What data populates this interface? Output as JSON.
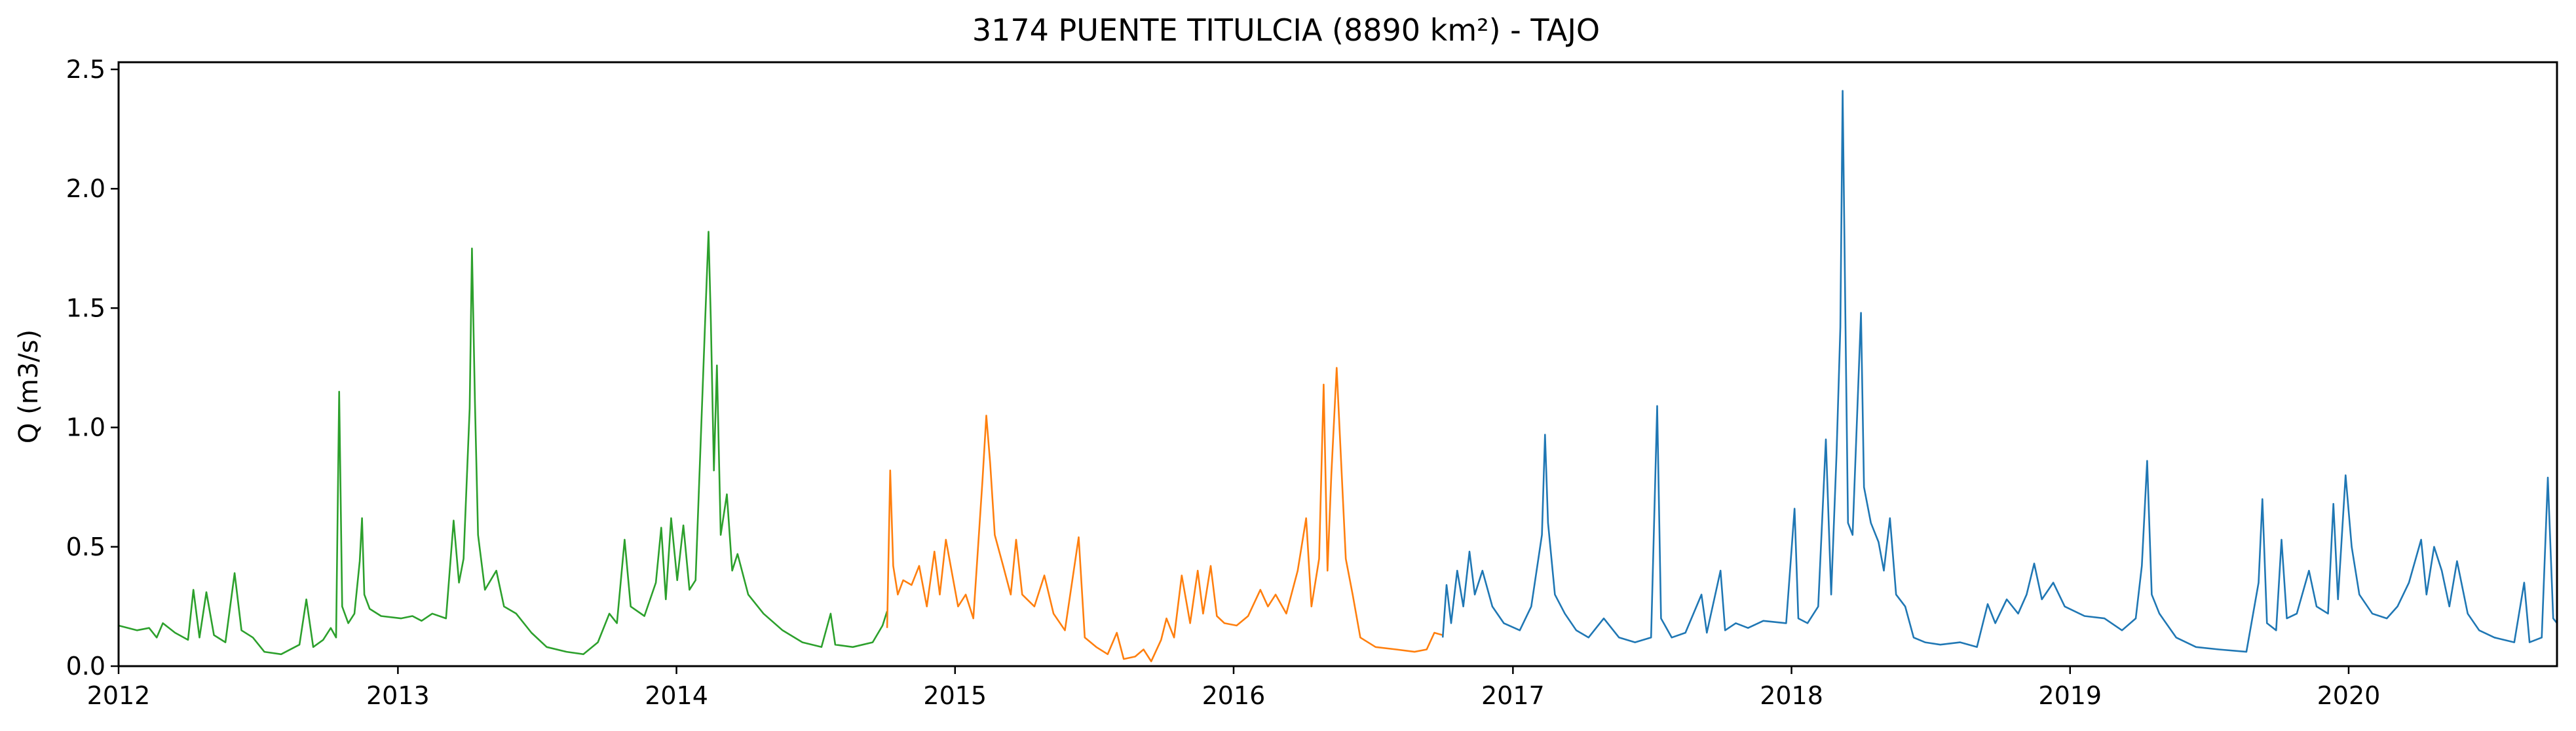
{
  "chart_data": {
    "type": "line",
    "title": "3174 PUENTE TITULCIA (8890 km²) - TAJO",
    "xlabel": "",
    "ylabel": "Q (m3/s)",
    "xlim": [
      "2012-01-01",
      "2020-09-30"
    ],
    "ylim": [
      0,
      2.53
    ],
    "x_ticks": [
      "2012",
      "2013",
      "2014",
      "2015",
      "2016",
      "2017",
      "2018",
      "2019",
      "2020"
    ],
    "y_ticks": [
      "0.0",
      "0.5",
      "1.0",
      "1.5",
      "2.0",
      "2.5"
    ],
    "grid": false,
    "legend": "none",
    "colors": {
      "green": "#2ca02c",
      "orange": "#ff7f0e",
      "blue": "#1f77b4"
    },
    "series": [
      {
        "color": "#2ca02c",
        "points": [
          [
            "2012-01-01",
            0.17
          ],
          [
            "2012-01-25",
            0.15
          ],
          [
            "2012-02-10",
            0.16
          ],
          [
            "2012-02-20",
            0.12
          ],
          [
            "2012-02-28",
            0.18
          ],
          [
            "2012-03-15",
            0.14
          ],
          [
            "2012-04-01",
            0.11
          ],
          [
            "2012-04-08",
            0.32
          ],
          [
            "2012-04-16",
            0.12
          ],
          [
            "2012-04-25",
            0.31
          ],
          [
            "2012-05-05",
            0.13
          ],
          [
            "2012-05-20",
            0.1
          ],
          [
            "2012-06-01",
            0.39
          ],
          [
            "2012-06-10",
            0.15
          ],
          [
            "2012-06-25",
            0.12
          ],
          [
            "2012-07-10",
            0.06
          ],
          [
            "2012-08-01",
            0.05
          ],
          [
            "2012-08-25",
            0.09
          ],
          [
            "2012-09-03",
            0.28
          ],
          [
            "2012-09-12",
            0.08
          ],
          [
            "2012-09-25",
            0.11
          ],
          [
            "2012-10-05",
            0.16
          ],
          [
            "2012-10-12",
            0.12
          ],
          [
            "2012-10-16",
            1.15
          ],
          [
            "2012-10-20",
            0.25
          ],
          [
            "2012-10-28",
            0.18
          ],
          [
            "2012-11-05",
            0.22
          ],
          [
            "2012-11-12",
            0.44
          ],
          [
            "2012-11-15",
            0.62
          ],
          [
            "2012-11-18",
            0.3
          ],
          [
            "2012-11-25",
            0.24
          ],
          [
            "2012-12-10",
            0.21
          ],
          [
            "2013-01-05",
            0.2
          ],
          [
            "2013-01-20",
            0.21
          ],
          [
            "2013-02-01",
            0.19
          ],
          [
            "2013-02-15",
            0.22
          ],
          [
            "2013-03-05",
            0.2
          ],
          [
            "2013-03-15",
            0.61
          ],
          [
            "2013-03-22",
            0.35
          ],
          [
            "2013-03-28",
            0.45
          ],
          [
            "2013-04-05",
            1.08
          ],
          [
            "2013-04-08",
            1.75
          ],
          [
            "2013-04-12",
            1.1
          ],
          [
            "2013-04-16",
            0.55
          ],
          [
            "2013-04-25",
            0.32
          ],
          [
            "2013-05-10",
            0.4
          ],
          [
            "2013-05-20",
            0.25
          ],
          [
            "2013-06-05",
            0.22
          ],
          [
            "2013-06-25",
            0.14
          ],
          [
            "2013-07-15",
            0.08
          ],
          [
            "2013-08-10",
            0.06
          ],
          [
            "2013-09-01",
            0.05
          ],
          [
            "2013-09-20",
            0.1
          ],
          [
            "2013-10-05",
            0.22
          ],
          [
            "2013-10-15",
            0.18
          ],
          [
            "2013-10-25",
            0.53
          ],
          [
            "2013-11-02",
            0.25
          ],
          [
            "2013-11-20",
            0.21
          ],
          [
            "2013-12-05",
            0.35
          ],
          [
            "2013-12-12",
            0.58
          ],
          [
            "2013-12-18",
            0.28
          ],
          [
            "2013-12-25",
            0.62
          ],
          [
            "2014-01-02",
            0.36
          ],
          [
            "2014-01-10",
            0.59
          ],
          [
            "2014-01-18",
            0.32
          ],
          [
            "2014-01-26",
            0.36
          ],
          [
            "2014-02-03",
            1.05
          ],
          [
            "2014-02-08",
            1.48
          ],
          [
            "2014-02-12",
            1.82
          ],
          [
            "2014-02-15",
            1.45
          ],
          [
            "2014-02-19",
            0.82
          ],
          [
            "2014-02-23",
            1.26
          ],
          [
            "2014-02-28",
            0.55
          ],
          [
            "2014-03-08",
            0.72
          ],
          [
            "2014-03-15",
            0.4
          ],
          [
            "2014-03-22",
            0.47
          ],
          [
            "2014-04-05",
            0.3
          ],
          [
            "2014-04-25",
            0.22
          ],
          [
            "2014-05-20",
            0.15
          ],
          [
            "2014-06-15",
            0.1
          ],
          [
            "2014-07-10",
            0.08
          ],
          [
            "2014-07-22",
            0.22
          ],
          [
            "2014-07-28",
            0.09
          ],
          [
            "2014-08-20",
            0.08
          ],
          [
            "2014-09-15",
            0.1
          ],
          [
            "2014-09-28",
            0.17
          ],
          [
            "2014-10-04",
            0.23
          ]
        ]
      },
      {
        "color": "#ff7f0e",
        "points": [
          [
            "2014-10-04",
            0.16
          ],
          [
            "2014-10-08",
            0.82
          ],
          [
            "2014-10-12",
            0.42
          ],
          [
            "2014-10-18",
            0.3
          ],
          [
            "2014-10-25",
            0.36
          ],
          [
            "2014-11-05",
            0.34
          ],
          [
            "2014-11-15",
            0.42
          ],
          [
            "2014-11-25",
            0.25
          ],
          [
            "2014-12-05",
            0.48
          ],
          [
            "2014-12-12",
            0.3
          ],
          [
            "2014-12-20",
            0.53
          ],
          [
            "2015-01-05",
            0.25
          ],
          [
            "2015-01-15",
            0.3
          ],
          [
            "2015-01-25",
            0.2
          ],
          [
            "2015-02-06",
            0.78
          ],
          [
            "2015-02-11",
            1.05
          ],
          [
            "2015-02-16",
            0.85
          ],
          [
            "2015-02-22",
            0.55
          ],
          [
            "2015-03-05",
            0.42
          ],
          [
            "2015-03-15",
            0.3
          ],
          [
            "2015-03-22",
            0.53
          ],
          [
            "2015-03-30",
            0.3
          ],
          [
            "2015-04-15",
            0.25
          ],
          [
            "2015-04-28",
            0.38
          ],
          [
            "2015-05-10",
            0.22
          ],
          [
            "2015-05-25",
            0.15
          ],
          [
            "2015-06-12",
            0.54
          ],
          [
            "2015-06-20",
            0.12
          ],
          [
            "2015-07-05",
            0.08
          ],
          [
            "2015-07-20",
            0.05
          ],
          [
            "2015-08-01",
            0.14
          ],
          [
            "2015-08-10",
            0.03
          ],
          [
            "2015-08-25",
            0.04
          ],
          [
            "2015-09-05",
            0.07
          ],
          [
            "2015-09-15",
            0.02
          ],
          [
            "2015-09-28",
            0.11
          ],
          [
            "2015-10-05",
            0.2
          ],
          [
            "2015-10-15",
            0.12
          ],
          [
            "2015-10-25",
            0.38
          ],
          [
            "2015-11-05",
            0.18
          ],
          [
            "2015-11-15",
            0.4
          ],
          [
            "2015-11-22",
            0.22
          ],
          [
            "2015-12-02",
            0.42
          ],
          [
            "2015-12-10",
            0.21
          ],
          [
            "2015-12-20",
            0.18
          ],
          [
            "2016-01-05",
            0.17
          ],
          [
            "2016-01-20",
            0.21
          ],
          [
            "2016-02-05",
            0.32
          ],
          [
            "2016-02-15",
            0.25
          ],
          [
            "2016-02-25",
            0.3
          ],
          [
            "2016-03-10",
            0.22
          ],
          [
            "2016-03-25",
            0.4
          ],
          [
            "2016-04-05",
            0.62
          ],
          [
            "2016-04-12",
            0.25
          ],
          [
            "2016-04-22",
            0.45
          ],
          [
            "2016-04-28",
            1.18
          ],
          [
            "2016-05-03",
            0.4
          ],
          [
            "2016-05-08",
            0.8
          ],
          [
            "2016-05-15",
            1.25
          ],
          [
            "2016-05-21",
            0.85
          ],
          [
            "2016-05-27",
            0.45
          ],
          [
            "2016-06-05",
            0.3
          ],
          [
            "2016-06-15",
            0.12
          ],
          [
            "2016-07-05",
            0.08
          ],
          [
            "2016-08-01",
            0.07
          ],
          [
            "2016-08-25",
            0.06
          ],
          [
            "2016-09-10",
            0.07
          ],
          [
            "2016-09-20",
            0.14
          ],
          [
            "2016-10-01",
            0.13
          ]
        ]
      },
      {
        "color": "#1f77b4",
        "points": [
          [
            "2016-10-01",
            0.12
          ],
          [
            "2016-10-06",
            0.34
          ],
          [
            "2016-10-12",
            0.18
          ],
          [
            "2016-10-20",
            0.4
          ],
          [
            "2016-10-28",
            0.25
          ],
          [
            "2016-11-05",
            0.48
          ],
          [
            "2016-11-12",
            0.3
          ],
          [
            "2016-11-22",
            0.4
          ],
          [
            "2016-12-05",
            0.25
          ],
          [
            "2016-12-20",
            0.18
          ],
          [
            "2017-01-10",
            0.15
          ],
          [
            "2017-01-25",
            0.25
          ],
          [
            "2017-02-08",
            0.55
          ],
          [
            "2017-02-12",
            0.97
          ],
          [
            "2017-02-16",
            0.6
          ],
          [
            "2017-02-25",
            0.3
          ],
          [
            "2017-03-10",
            0.22
          ],
          [
            "2017-03-25",
            0.15
          ],
          [
            "2017-04-10",
            0.12
          ],
          [
            "2017-04-30",
            0.2
          ],
          [
            "2017-05-20",
            0.12
          ],
          [
            "2017-06-10",
            0.1
          ],
          [
            "2017-07-01",
            0.12
          ],
          [
            "2017-07-09",
            1.09
          ],
          [
            "2017-07-14",
            0.2
          ],
          [
            "2017-07-28",
            0.12
          ],
          [
            "2017-08-15",
            0.14
          ],
          [
            "2017-09-05",
            0.3
          ],
          [
            "2017-09-12",
            0.14
          ],
          [
            "2017-09-30",
            0.4
          ],
          [
            "2017-10-06",
            0.15
          ],
          [
            "2017-10-20",
            0.18
          ],
          [
            "2017-11-05",
            0.16
          ],
          [
            "2017-11-25",
            0.19
          ],
          [
            "2017-12-25",
            0.18
          ],
          [
            "2018-01-05",
            0.66
          ],
          [
            "2018-01-10",
            0.2
          ],
          [
            "2018-01-22",
            0.18
          ],
          [
            "2018-02-05",
            0.25
          ],
          [
            "2018-02-15",
            0.95
          ],
          [
            "2018-02-22",
            0.3
          ],
          [
            "2018-03-01",
            0.89
          ],
          [
            "2018-03-06",
            1.42
          ],
          [
            "2018-03-09",
            2.41
          ],
          [
            "2018-03-13",
            1.35
          ],
          [
            "2018-03-16",
            0.6
          ],
          [
            "2018-03-22",
            0.55
          ],
          [
            "2018-03-28",
            1.05
          ],
          [
            "2018-04-02",
            1.48
          ],
          [
            "2018-04-06",
            0.75
          ],
          [
            "2018-04-15",
            0.6
          ],
          [
            "2018-04-25",
            0.52
          ],
          [
            "2018-05-02",
            0.4
          ],
          [
            "2018-05-10",
            0.62
          ],
          [
            "2018-05-18",
            0.3
          ],
          [
            "2018-05-30",
            0.25
          ],
          [
            "2018-06-10",
            0.12
          ],
          [
            "2018-06-25",
            0.1
          ],
          [
            "2018-07-15",
            0.09
          ],
          [
            "2018-08-10",
            0.1
          ],
          [
            "2018-09-01",
            0.08
          ],
          [
            "2018-09-15",
            0.26
          ],
          [
            "2018-09-25",
            0.18
          ],
          [
            "2018-10-10",
            0.28
          ],
          [
            "2018-10-25",
            0.22
          ],
          [
            "2018-11-05",
            0.3
          ],
          [
            "2018-11-15",
            0.43
          ],
          [
            "2018-11-25",
            0.28
          ],
          [
            "2018-12-10",
            0.35
          ],
          [
            "2018-12-25",
            0.25
          ],
          [
            "2019-01-20",
            0.21
          ],
          [
            "2019-02-15",
            0.2
          ],
          [
            "2019-03-10",
            0.15
          ],
          [
            "2019-03-28",
            0.2
          ],
          [
            "2019-04-05",
            0.42
          ],
          [
            "2019-04-12",
            0.86
          ],
          [
            "2019-04-18",
            0.3
          ],
          [
            "2019-04-28",
            0.22
          ],
          [
            "2019-05-20",
            0.12
          ],
          [
            "2019-06-15",
            0.08
          ],
          [
            "2019-07-15",
            0.07
          ],
          [
            "2019-08-20",
            0.06
          ],
          [
            "2019-09-05",
            0.35
          ],
          [
            "2019-09-10",
            0.7
          ],
          [
            "2019-09-16",
            0.18
          ],
          [
            "2019-09-28",
            0.15
          ],
          [
            "2019-10-05",
            0.53
          ],
          [
            "2019-10-12",
            0.2
          ],
          [
            "2019-10-25",
            0.22
          ],
          [
            "2019-11-10",
            0.4
          ],
          [
            "2019-11-20",
            0.25
          ],
          [
            "2019-12-05",
            0.22
          ],
          [
            "2019-12-12",
            0.68
          ],
          [
            "2019-12-18",
            0.28
          ],
          [
            "2019-12-28",
            0.8
          ],
          [
            "2020-01-05",
            0.5
          ],
          [
            "2020-01-15",
            0.3
          ],
          [
            "2020-02-01",
            0.22
          ],
          [
            "2020-02-20",
            0.2
          ],
          [
            "2020-03-05",
            0.25
          ],
          [
            "2020-03-20",
            0.35
          ],
          [
            "2020-04-05",
            0.53
          ],
          [
            "2020-04-12",
            0.3
          ],
          [
            "2020-04-22",
            0.5
          ],
          [
            "2020-05-02",
            0.4
          ],
          [
            "2020-05-12",
            0.25
          ],
          [
            "2020-05-22",
            0.44
          ],
          [
            "2020-06-05",
            0.22
          ],
          [
            "2020-06-20",
            0.15
          ],
          [
            "2020-07-10",
            0.12
          ],
          [
            "2020-08-05",
            0.1
          ],
          [
            "2020-08-18",
            0.35
          ],
          [
            "2020-08-25",
            0.1
          ],
          [
            "2020-09-10",
            0.12
          ],
          [
            "2020-09-18",
            0.79
          ],
          [
            "2020-09-25",
            0.2
          ],
          [
            "2020-09-30",
            0.18
          ]
        ]
      }
    ]
  }
}
